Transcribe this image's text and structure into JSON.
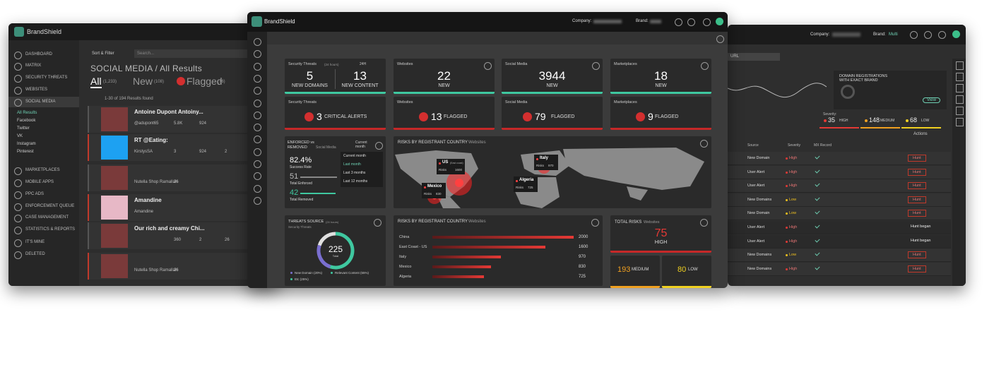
{
  "left": {
    "brand": "BrandShield",
    "nav": [
      "DASHBOARD",
      "MATRIX",
      "SECURITY THREATS",
      "WEBSITES",
      "SOCIAL MEDIA",
      "MARKETPLACES",
      "MOBILE APPS",
      "PPC ADS",
      "ENFORCEMENT QUEUE",
      "CASE MANAGEMENT",
      "STATISTICS & REPORTS",
      "IT'S MINE",
      "DELETED"
    ],
    "sub": [
      "All Results",
      "Facebook",
      "Twitter",
      "VK",
      "Instagram",
      "Pinterest"
    ],
    "filter": "Sort & Filter",
    "search": "Search...",
    "heading": "SOCIAL MEDIA / All Results",
    "tabs": [
      {
        "label": "All",
        "count": "(1,233)"
      },
      {
        "label": "New",
        "count": "(108)"
      },
      {
        "label": "Flagged",
        "count": "(76)"
      }
    ],
    "results": "1-30 of 194 Results found",
    "posts": [
      {
        "title": "Antoine Dupont Antoiny...",
        "user": "@adupont65",
        "stats": [
          "5.8K",
          "924"
        ]
      },
      {
        "title": "RT @Eating:",
        "user": "KirstysSA",
        "stats": [
          "3",
          "924",
          "2"
        ]
      },
      {
        "user": "Nutella Shop Ramallah",
        "stats": [
          "26"
        ]
      },
      {
        "title": "Amandine",
        "user": "Amandine"
      },
      {
        "title": "Our rich and creamy Chi...",
        "stats": [
          "360",
          "2",
          "26"
        ]
      },
      {
        "user": "Nutella Shop Ramallah",
        "stats": [
          "26"
        ]
      }
    ]
  },
  "center": {
    "brand": "BrandShield",
    "company": "Company:",
    "brandLabel": "Brand:",
    "cards": [
      {
        "title": "Security Threats",
        "sub": "(24 hours)",
        "period": "24H",
        "items": [
          {
            "value": "5",
            "label": "NEW DOMAINS"
          },
          {
            "value": "13",
            "label": "NEW CONTENT"
          }
        ]
      },
      {
        "title": "Websites",
        "value": "22",
        "label": "NEW"
      },
      {
        "title": "Social Media",
        "value": "3944",
        "label": "NEW"
      },
      {
        "title": "Marketplaces",
        "value": "18",
        "label": "NEW"
      }
    ],
    "alerts": [
      {
        "title": "Security Threats",
        "value": "3",
        "label": "CRITICAL ALERTS"
      },
      {
        "title": "Websites",
        "value": "13",
        "label": "FLAGGED"
      },
      {
        "title": "Social Media",
        "value": "79",
        "label": "FLAGGED"
      },
      {
        "title": "Marketplaces",
        "value": "9",
        "label": "FLAGGED"
      }
    ],
    "enforced": {
      "title": "ENFORCED vs REMOVED",
      "sub": "Social Media",
      "rate": "82.4%",
      "rateLabel": "Success Rate",
      "enforced": "51",
      "enforcedLabel": "Total Enforced",
      "removed": "42",
      "removedLabel": "Total Removed",
      "period": "Current month",
      "options": [
        "Current month",
        "Last month",
        "Last 3 months",
        "Last 12 months"
      ]
    },
    "map": {
      "title": "RISKS BY REGISTRANT COUNTRY",
      "sub": "Websites",
      "pins": [
        {
          "name": "US",
          "note": "(East coast)",
          "risks": "Risks",
          "value": "1600"
        },
        {
          "name": "Italy",
          "risks": "Risks",
          "value": "970"
        },
        {
          "name": "Mexico",
          "risks": "Risks",
          "value": "830"
        },
        {
          "name": "Algeria",
          "risks": "Risks",
          "value": "725"
        }
      ]
    },
    "threats": {
      "title": "THREATS SOURCE",
      "sub": "(24 hours)",
      "sub2": "Security Threats",
      "total": "225",
      "totalLabel": "Total",
      "legend": [
        "New Domain (20%)",
        "Relevant Content (55%)",
        "Etc (25%)"
      ]
    },
    "bars": {
      "title": "RISKS BY REGISTRANT COUNTRY",
      "sub": "Websites",
      "categories": [
        "China",
        "East Coast - US",
        "Italy",
        "Mexico",
        "Algeria"
      ],
      "values": [
        2000,
        1600,
        970,
        830,
        725
      ]
    },
    "total": {
      "title": "TOTAL RISKS",
      "sub": "Websites",
      "high": "75",
      "highLabel": "HIGH",
      "medium": "193",
      "mediumLabel": "MEDIUM",
      "low": "80",
      "lowLabel": "LOW"
    }
  },
  "right": {
    "company": "Company:",
    "brand": "Brand:",
    "brandValue": "Multi",
    "filter": "URL",
    "domainReg": "DOMAIN REGISTRATIONS WITH EXACT BRAND",
    "view": "View",
    "severity": "Severity:",
    "levels": [
      {
        "value": "35",
        "label": "HIGH"
      },
      {
        "value": "148",
        "label": "MEDIUM"
      },
      {
        "value": "68",
        "label": "LOW"
      }
    ],
    "actions": "Actions",
    "columns": [
      "Source",
      "Severity",
      "MX Record"
    ],
    "rows": [
      {
        "source": "New Domain",
        "severity": "High",
        "action": "Hunt"
      },
      {
        "source": "User Alert",
        "severity": "High",
        "action": "Hunt"
      },
      {
        "source": "User Alert",
        "severity": "High",
        "action": "Hunt"
      },
      {
        "source": "New Domains",
        "severity": "Low",
        "action": "Hunt"
      },
      {
        "source": "New Domain",
        "severity": "Low",
        "action": "Hunt"
      },
      {
        "source": "User Alert",
        "severity": "High",
        "action": "Hunt began"
      },
      {
        "source": "User Alert",
        "severity": "High",
        "action": "Hunt began"
      },
      {
        "source": "New Domains",
        "severity": "Low",
        "action": "Hunt"
      },
      {
        "source": "New Domains",
        "severity": "High",
        "action": "Hunt"
      }
    ]
  }
}
